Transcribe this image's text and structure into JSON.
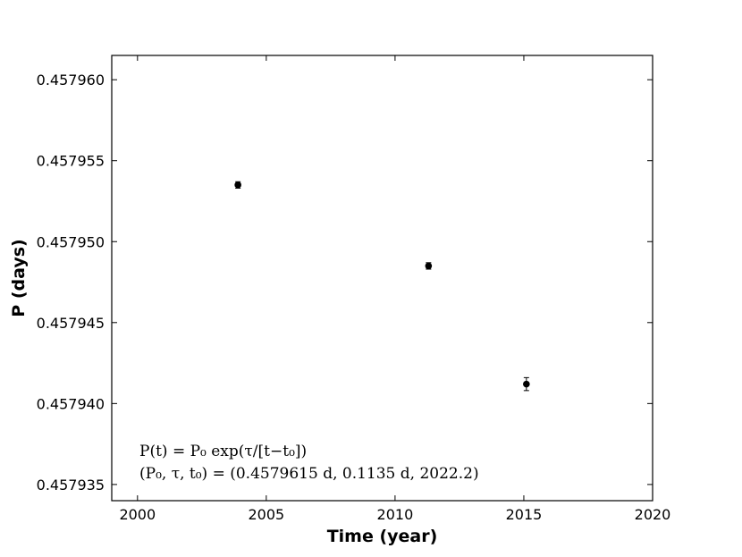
{
  "chart_data": {
    "type": "scatter",
    "xlabel": "Time (year)",
    "ylabel": "P (days)",
    "xlim": [
      1999,
      2020
    ],
    "ylim": [
      0.457934,
      0.4579615
    ],
    "xticks": [
      2000,
      2005,
      2010,
      2015,
      2020
    ],
    "xtick_labels": [
      "2000",
      "2005",
      "2010",
      "2015",
      "2020"
    ],
    "yticks": [
      0.457935,
      0.45794,
      0.457945,
      0.45795,
      0.457955,
      0.45796
    ],
    "ytick_labels": [
      "0.457935",
      "0.457940",
      "0.457945",
      "0.457950",
      "0.457955",
      "0.457960"
    ],
    "grid": false,
    "points": [
      {
        "x": 2003.9,
        "y": 0.4579535,
        "yerr": 2e-07
      },
      {
        "x": 2011.3,
        "y": 0.4579485,
        "yerr": 2e-07
      },
      {
        "x": 2015.1,
        "y": 0.4579412,
        "yerr": 4e-07
      }
    ],
    "model": {
      "P0": 0.4579615,
      "tau": 0.1135,
      "t0": 2022.2
    },
    "annotations": [
      "P(t) = P₀ exp(τ/[t−t₀])",
      "(P₀, τ, t₀) = (0.4579615 d, 0.1135 d, 2022.2)"
    ]
  }
}
